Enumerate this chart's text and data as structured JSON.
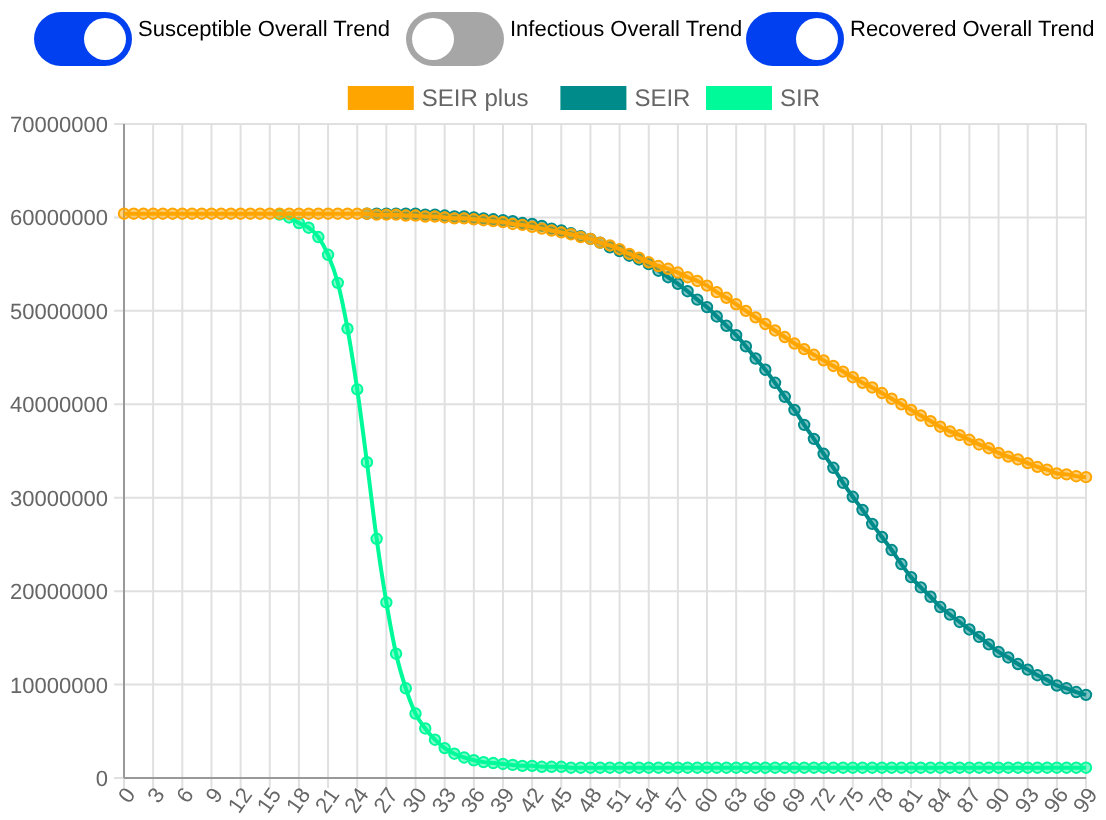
{
  "chart_data": {
    "type": "line",
    "annotations": [
      "Susceptible Overall Trend",
      "Infectious Overall Trend",
      "Recovered Overall Trend"
    ],
    "x": [
      0,
      1,
      2,
      3,
      4,
      5,
      6,
      7,
      8,
      9,
      10,
      11,
      12,
      13,
      14,
      15,
      16,
      17,
      18,
      19,
      20,
      21,
      22,
      23,
      24,
      25,
      26,
      27,
      28,
      29,
      30,
      31,
      32,
      33,
      34,
      35,
      36,
      37,
      38,
      39,
      40,
      41,
      42,
      43,
      44,
      45,
      46,
      47,
      48,
      49,
      50,
      51,
      52,
      53,
      54,
      55,
      56,
      57,
      58,
      59,
      60,
      61,
      62,
      63,
      64,
      65,
      66,
      67,
      68,
      69,
      70,
      71,
      72,
      73,
      74,
      75,
      76,
      77,
      78,
      79,
      80,
      81,
      82,
      83,
      84,
      85,
      86,
      87,
      88,
      89,
      90,
      91,
      92,
      93,
      94,
      95,
      96,
      97,
      98,
      99
    ],
    "xlim": [
      0,
      99
    ],
    "xticks": [
      0,
      3,
      6,
      9,
      12,
      15,
      18,
      21,
      24,
      27,
      30,
      33,
      36,
      39,
      42,
      45,
      48,
      51,
      54,
      57,
      60,
      63,
      66,
      69,
      72,
      75,
      78,
      81,
      84,
      87,
      90,
      93,
      96,
      99
    ],
    "ylim": [
      0,
      70000000
    ],
    "yticks": [
      0,
      10000000,
      20000000,
      30000000,
      40000000,
      50000000,
      60000000,
      70000000
    ],
    "grid": true,
    "legend": "top",
    "marker": "circle",
    "line_style": "solid",
    "series": [
      {
        "name": "SEIR plus",
        "color": "#ffa500",
        "values": [
          60400000,
          60400000,
          60400000,
          60400000,
          60400000,
          60400000,
          60400000,
          60400000,
          60400000,
          60400000,
          60400000,
          60400000,
          60400000,
          60400000,
          60400000,
          60400000,
          60400000,
          60400000,
          60400000,
          60400000,
          60400000,
          60400000,
          60400000,
          60400000,
          60400000,
          60400000,
          60300000,
          60300000,
          60300000,
          60200000,
          60200000,
          60100000,
          60100000,
          60000000,
          59900000,
          59900000,
          59800000,
          59700000,
          59600000,
          59500000,
          59300000,
          59200000,
          59000000,
          58800000,
          58600000,
          58400000,
          58200000,
          57900000,
          57700000,
          57300000,
          57000000,
          56600000,
          56100000,
          55700000,
          55200000,
          54800000,
          54500000,
          54100000,
          53600000,
          53200000,
          52700000,
          52000000,
          51400000,
          50700000,
          50000000,
          49300000,
          48600000,
          47900000,
          47200000,
          46500000,
          45900000,
          45300000,
          44700000,
          44100000,
          43500000,
          42900000,
          42300000,
          41800000,
          41200000,
          40600000,
          40000000,
          39400000,
          38800000,
          38200000,
          37600000,
          37100000,
          36700000,
          36200000,
          35700000,
          35300000,
          34800000,
          34400000,
          34100000,
          33700000,
          33300000,
          33000000,
          32600000,
          32500000,
          32300000,
          32200000
        ]
      },
      {
        "name": "SEIR",
        "color": "#008b8b",
        "values": [
          null,
          null,
          null,
          null,
          null,
          null,
          null,
          null,
          null,
          null,
          null,
          null,
          null,
          null,
          null,
          null,
          null,
          null,
          null,
          null,
          null,
          null,
          null,
          null,
          null,
          60400000,
          60400000,
          60400000,
          60400000,
          60400000,
          60400000,
          60300000,
          60300000,
          60200000,
          60100000,
          60100000,
          60000000,
          59900000,
          59800000,
          59700000,
          59600000,
          59400000,
          59300000,
          59100000,
          58800000,
          58600000,
          58300000,
          58000000,
          57700000,
          57300000,
          56800000,
          56400000,
          55900000,
          55500000,
          55000000,
          54300000,
          53600000,
          52900000,
          52100000,
          51200000,
          50400000,
          49400000,
          48400000,
          47400000,
          46200000,
          44900000,
          43700000,
          42300000,
          40800000,
          39400000,
          37800000,
          36300000,
          34700000,
          33200000,
          31600000,
          30100000,
          28700000,
          27200000,
          25800000,
          24400000,
          22900000,
          21500000,
          20400000,
          19400000,
          18300000,
          17500000,
          16700000,
          15900000,
          15100000,
          14300000,
          13500000,
          12900000,
          12200000,
          11600000,
          11000000,
          10500000,
          9900000,
          9600000,
          9200000,
          8900000
        ]
      },
      {
        "name": "SIR",
        "color": "#00fa9a",
        "values": [
          null,
          null,
          null,
          null,
          null,
          null,
          null,
          null,
          null,
          null,
          null,
          null,
          null,
          null,
          null,
          null,
          60300000,
          60000000,
          59400000,
          58900000,
          57900000,
          56000000,
          53000000,
          48100000,
          41600000,
          33800000,
          25600000,
          18800000,
          13300000,
          9600000,
          6900000,
          5300000,
          4100000,
          3200000,
          2600000,
          2200000,
          1900000,
          1700000,
          1600000,
          1500000,
          1400000,
          1300000,
          1300000,
          1200000,
          1200000,
          1200000,
          1100000,
          1100000,
          1100000,
          1100000,
          1100000,
          1100000,
          1100000,
          1100000,
          1100000,
          1100000,
          1100000,
          1100000,
          1100000,
          1100000,
          1100000,
          1100000,
          1100000,
          1100000,
          1100000,
          1100000,
          1100000,
          1100000,
          1100000,
          1100000,
          1100000,
          1100000,
          1100000,
          1100000,
          1100000,
          1100000,
          1100000,
          1100000,
          1100000,
          1100000,
          1100000,
          1100000,
          1100000,
          1100000,
          1100000,
          1100000,
          1100000,
          1100000,
          1100000,
          1100000,
          1100000,
          1100000,
          1100000,
          1100000,
          1100000,
          1100000,
          1100000,
          1100000,
          1100000,
          1100000
        ]
      }
    ]
  }
}
